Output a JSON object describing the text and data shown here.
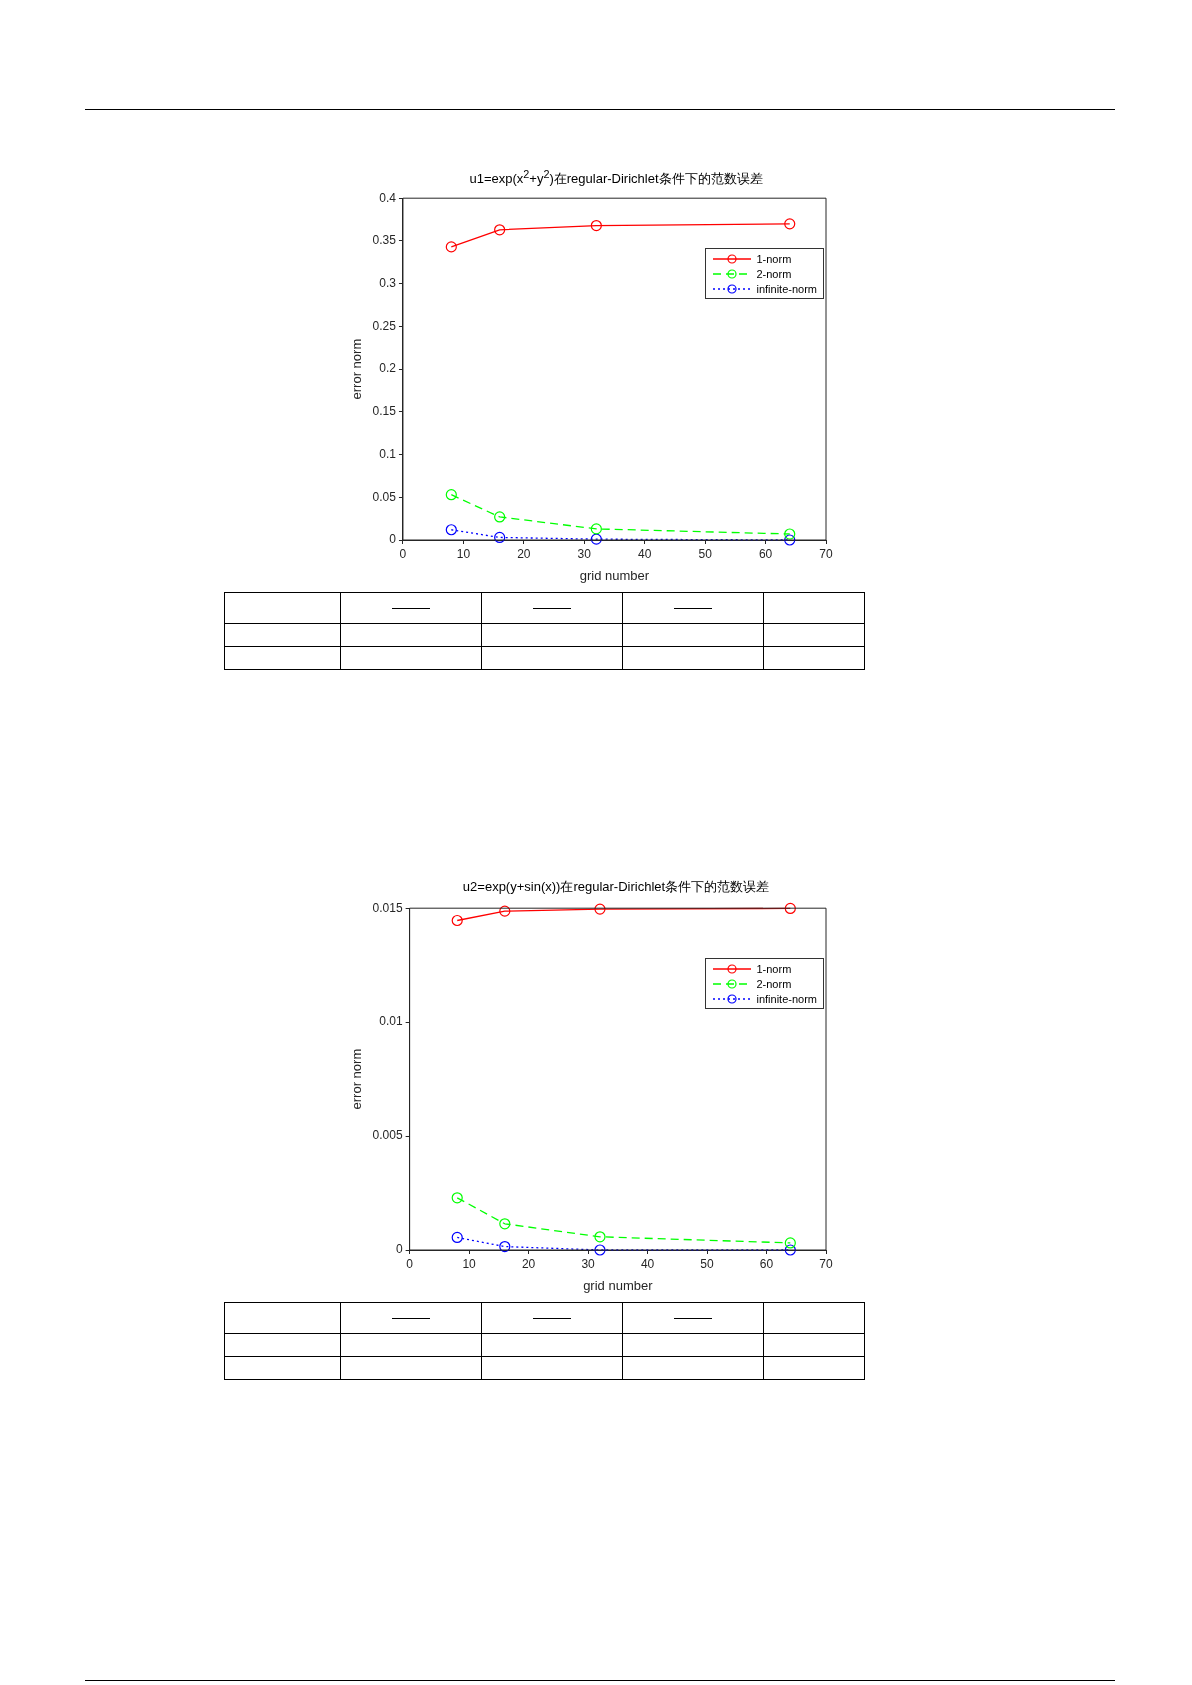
{
  "chart_data": [
    {
      "type": "line",
      "title": "u1=exp(x$^{2}$+y$^{2}$)在regular-Dirichlet条件下的范数误差",
      "xlabel": "grid number",
      "ylabel": "error norm",
      "x": [
        8,
        16,
        32,
        64
      ],
      "series": [
        {
          "name": "1-norm",
          "color": "#ff0000",
          "line_style": "solid",
          "values": [
            0.343,
            0.363,
            0.368,
            0.37
          ]
        },
        {
          "name": "2-norm",
          "color": "#00ff00",
          "line_style": "dashed",
          "values": [
            0.053,
            0.027,
            0.013,
            0.007
          ]
        },
        {
          "name": "infinite-norm",
          "color": "#0000ff",
          "line_style": "dotted",
          "values": [
            0.012,
            0.003,
            0.001,
            0
          ]
        }
      ],
      "xlim": [
        0,
        70
      ],
      "xticks": [
        0,
        10,
        20,
        30,
        40,
        50,
        60,
        70
      ],
      "ylim": [
        0,
        0.4
      ],
      "yticks": [
        0,
        0.05,
        0.1,
        0.15,
        0.2,
        0.25,
        0.3,
        0.35,
        0.4
      ],
      "grid": false,
      "legend": "top right",
      "marker": "circle"
    },
    {
      "type": "line",
      "title": "u2=exp(y+sin(x))在regular-Dirichlet条件下的范数误差",
      "xlabel": "grid number",
      "ylabel": "error norm",
      "x": [
        8,
        16,
        32,
        64
      ],
      "series": [
        {
          "name": "1-norm",
          "color": "#ff0000",
          "line_style": "solid",
          "values": [
            0.01446,
            0.01487,
            0.01496,
            0.01499
          ]
        },
        {
          "name": "2-norm",
          "color": "#00ff00",
          "line_style": "dashed",
          "values": [
            0.00229,
            0.00115,
            0.00058,
            0.00031
          ]
        },
        {
          "name": "infinite-norm",
          "color": "#0000ff",
          "line_style": "dotted",
          "values": [
            0.00055,
            0.00015,
            0,
            0
          ]
        }
      ],
      "xlim": [
        0,
        70
      ],
      "xticks": [
        0,
        10,
        20,
        30,
        40,
        50,
        60,
        70
      ],
      "ylim": [
        0,
        0.015
      ],
      "yticks": [
        0,
        0.005,
        0.01,
        0.015
      ],
      "grid": false,
      "legend": "top right",
      "marker": "circle"
    }
  ]
}
